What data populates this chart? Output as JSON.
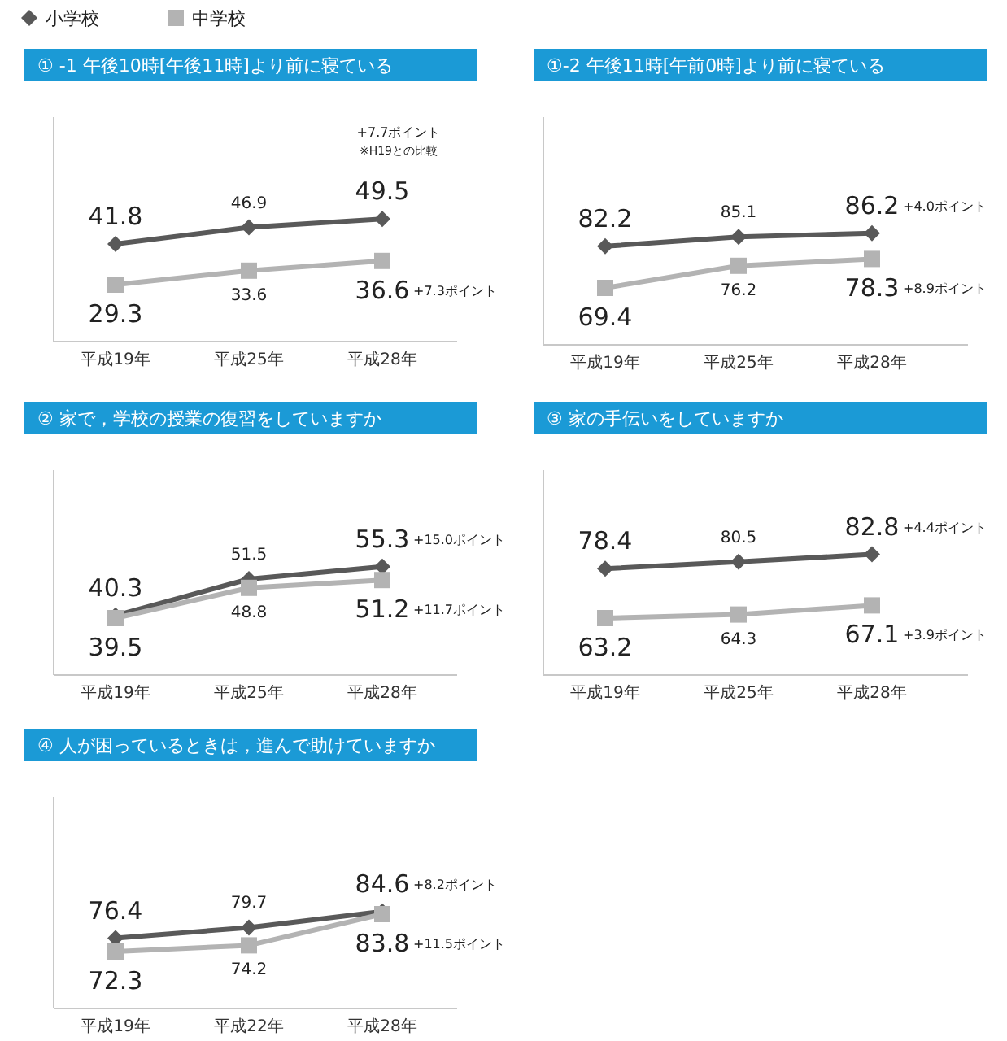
{
  "chart_data": [
    {
      "type": "line",
      "title": "① -1 午後10時[午後11時]より前に寝ている",
      "categories": [
        "平成19年",
        "平成25年",
        "平成28年"
      ],
      "legend": "top left",
      "data_labels": true,
      "series": [
        {
          "name": "小学校",
          "color": "#595959",
          "marker": "diamond",
          "values": [
            41.8,
            46.9,
            49.5
          ]
        },
        {
          "name": "中学校",
          "color": "#b3b3b3",
          "marker": "square",
          "values": [
            29.3,
            33.6,
            36.6
          ]
        }
      ],
      "annotations": [
        "+7.7ポイント",
        "※H19との比較",
        {
          "text": "+7.3ポイント",
          "x": "平成28年",
          "y": 36.6
        }
      ]
    },
    {
      "type": "line",
      "title": "①-2 午後11時[午前0時]より前に寝ている",
      "categories": [
        "平成19年",
        "平成25年",
        "平成28年"
      ],
      "data_labels": true,
      "series": [
        {
          "color": "#595959",
          "marker": "diamond",
          "values": [
            82.2,
            85.1,
            86.2
          ]
        },
        {
          "color": "#b3b3b3",
          "marker": "square",
          "values": [
            69.4,
            76.2,
            78.3
          ]
        }
      ],
      "annotations": [
        {
          "text": "+4.0ポイント",
          "x": "平成28年",
          "y": 86.2
        },
        {
          "text": "+8.9ポイント",
          "x": "平成28年",
          "y": 78.3
        }
      ]
    },
    {
      "type": "line",
      "title": "② 家で，学校の授業の復習をしていますか",
      "categories": [
        "平成19年",
        "平成25年",
        "平成28年"
      ],
      "data_labels": true,
      "series": [
        {
          "color": "#595959",
          "marker": "diamond",
          "values": [
            40.3,
            51.5,
            55.3
          ]
        },
        {
          "color": "#b3b3b3",
          "marker": "square",
          "values": [
            39.5,
            48.8,
            51.2
          ]
        }
      ],
      "annotations": [
        {
          "text": "+15.0ポイント",
          "x": "平成28年",
          "y": 55.3
        },
        {
          "text": "+11.7ポイント",
          "x": "平成28年",
          "y": 51.2
        }
      ]
    },
    {
      "type": "line",
      "title": "③ 家の手伝いをしていますか",
      "categories": [
        "平成19年",
        "平成25年",
        "平成28年"
      ],
      "data_labels": true,
      "series": [
        {
          "color": "#595959",
          "marker": "diamond",
          "values": [
            78.4,
            80.5,
            82.8
          ]
        },
        {
          "color": "#b3b3b3",
          "marker": "square",
          "values": [
            63.2,
            64.3,
            67.1
          ]
        }
      ],
      "annotations": [
        {
          "text": "+4.4ポイント",
          "x": "平成28年",
          "y": 82.8
        },
        {
          "text": "+3.9ポイント",
          "x": "平成28年",
          "y": 67.1
        }
      ]
    },
    {
      "type": "line",
      "title": "④ 人が困っているときは，進んで助けていますか",
      "categories": [
        "平成19年",
        "平成22年",
        "平成28年"
      ],
      "data_labels": true,
      "series": [
        {
          "color": "#595959",
          "marker": "diamond",
          "values": [
            76.4,
            79.7,
            84.6
          ]
        },
        {
          "color": "#b3b3b3",
          "marker": "square",
          "values": [
            72.3,
            74.2,
            83.8
          ]
        }
      ],
      "annotations": [
        {
          "text": "+8.2ポイント",
          "x": "平成28年",
          "y": 84.6
        },
        {
          "text": "+11.5ポイント",
          "x": "平成28年",
          "y": 83.8
        }
      ]
    }
  ]
}
